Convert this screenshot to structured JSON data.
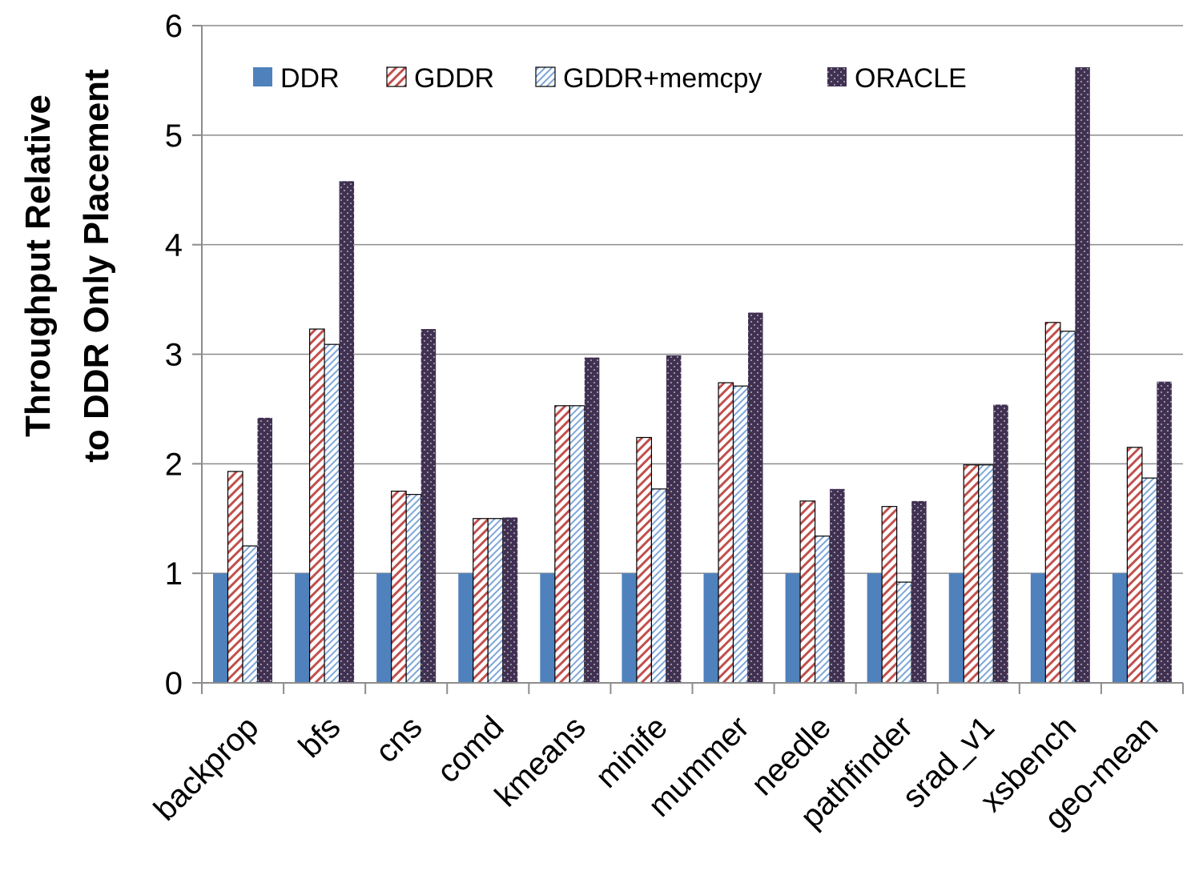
{
  "chart_data": {
    "type": "bar",
    "ylabel_lines": [
      "Throughput Relative",
      "to DDR Only Placement"
    ],
    "ylim": [
      0,
      6
    ],
    "yticks": [
      0,
      1,
      2,
      3,
      4,
      5,
      6
    ],
    "grid": true,
    "legend_position": "top-left",
    "categories": [
      "backprop",
      "bfs",
      "cns",
      "comd",
      "kmeans",
      "minife",
      "mummer",
      "needle",
      "pathfinder",
      "srad_v1",
      "xsbench",
      "geo-mean"
    ],
    "series": [
      {
        "name": "DDR",
        "pattern": "solid",
        "color": "#4f81bd",
        "values": [
          1,
          1,
          1,
          1,
          1,
          1,
          1,
          1,
          1,
          1,
          1,
          1
        ]
      },
      {
        "name": "GDDR",
        "pattern": "diagonal-hatch",
        "color": "#c0504d",
        "values": [
          1.93,
          3.23,
          1.75,
          1.5,
          2.53,
          2.24,
          2.74,
          1.66,
          1.61,
          1.99,
          3.29,
          2.15
        ]
      },
      {
        "name": "GDDR+memcpy",
        "pattern": "light-diagonal-hatch",
        "color": "#4f81bd",
        "values": [
          1.25,
          3.09,
          1.72,
          1.5,
          2.53,
          1.77,
          2.71,
          1.34,
          0.92,
          1.99,
          3.21,
          1.87
        ]
      },
      {
        "name": "ORACLE",
        "pattern": "dotted",
        "color": "#403151",
        "values": [
          2.42,
          4.58,
          3.23,
          1.51,
          2.97,
          2.99,
          3.38,
          1.77,
          1.66,
          2.54,
          5.62,
          2.75
        ]
      }
    ]
  }
}
